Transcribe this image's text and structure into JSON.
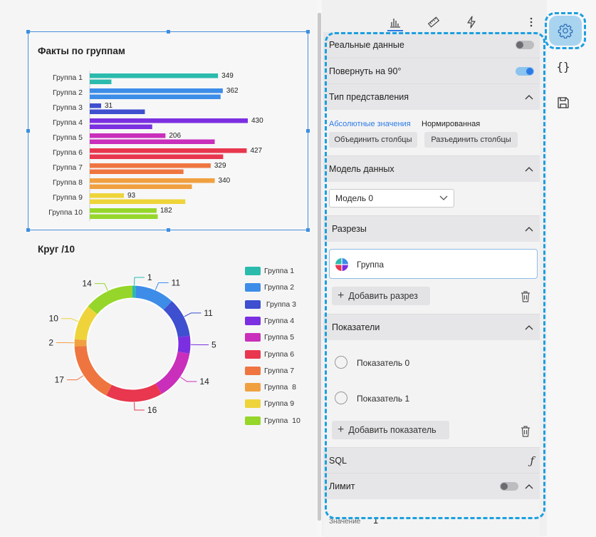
{
  "bar_widget": {
    "title": "Факты по группам",
    "categories": [
      "Группа 1",
      "Группа 2",
      "Группа 3",
      "Группа 4",
      "Группа 5",
      "Группа 6",
      "Группа 7",
      "Группа  8",
      "Группа 9",
      "Группа  10"
    ],
    "values": [
      349,
      362,
      31,
      430,
      206,
      427,
      329,
      340,
      93,
      182
    ],
    "secondary_values": [
      59,
      356,
      150,
      170,
      340,
      363,
      255,
      278,
      260,
      185
    ],
    "colors": [
      "#2bbbad",
      "#3d8de8",
      "#3e4fcf",
      "#7b2fe0",
      "#c92fbb",
      "#e8374e",
      "#ef7540",
      "#f0a040",
      "#eed43a",
      "#96d62a"
    ]
  },
  "donut_widget": {
    "title": "Круг /10",
    "labels": [
      "1",
      "11",
      "11",
      "5",
      "14",
      "16",
      "17",
      "2",
      "10",
      "14"
    ],
    "values": [
      1,
      11,
      11,
      5,
      14,
      16,
      17,
      2,
      10,
      14
    ],
    "legend": [
      "Группа 1",
      "Группа 2",
      " Группа 3",
      "Группа 4",
      "Группа 5",
      "Группа 6",
      "Группа 7",
      "Группа  8",
      "Группа 9",
      "Группа  10"
    ]
  },
  "panel": {
    "tabs": [
      "chart-tab",
      "ruler-tab",
      "lightning-tab",
      "more-tab"
    ],
    "real_data_label": "Реальные данные",
    "real_data_on": false,
    "rotate_label": "Повернуть на 90°",
    "rotate_on": true,
    "view_type_label": "Тип представления",
    "absolute_label": "Абсолютные значения",
    "normalized_label": "Нормированная",
    "merge_label": "Объединить столбцы",
    "split_label": "Разъединить столбцы",
    "data_model_label": "Модель данных",
    "model_value": "Модель 0",
    "slices_label": "Разрезы",
    "slice_item": "Группа",
    "add_slice": "Добавить разрез",
    "measures_label": "Показатели",
    "measure_0": "Показатель 0",
    "measure_1": "Показатель 1",
    "add_measure": "Добавить показатель",
    "sql_label": "SQL",
    "limit_label": "Лимит",
    "limit_on": false,
    "value_label": "Значение",
    "value": "1"
  },
  "rail": {
    "settings_icon": "gear-icon",
    "code_icon": "braces-icon",
    "save_icon": "save-icon"
  },
  "accent": "#1a9fe0"
}
